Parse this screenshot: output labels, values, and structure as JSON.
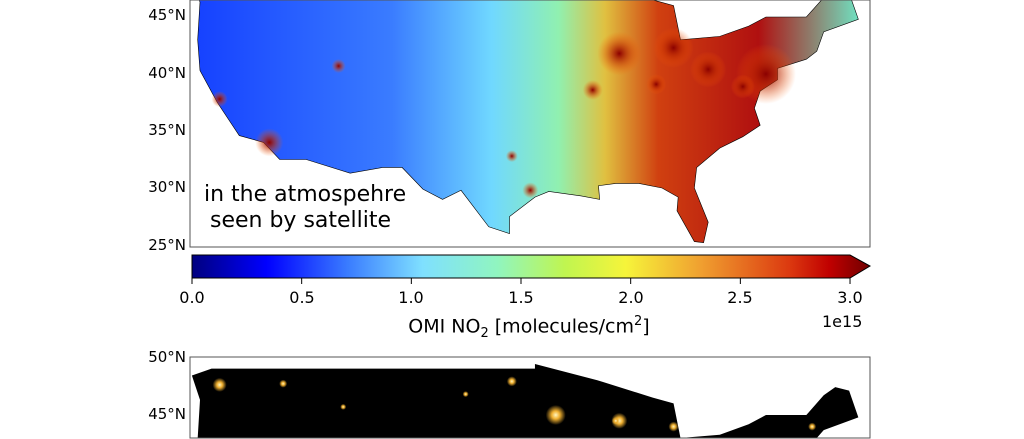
{
  "top_map": {
    "lat_labels": [
      "45°N",
      "40°N",
      "35°N",
      "30°N",
      "25°N"
    ],
    "annotation_line1": "in the atmospehre",
    "annotation_line2": "seen by satellite"
  },
  "colorbar": {
    "colormap": "jet",
    "range": [
      0.0,
      3.0
    ],
    "extend": "max",
    "tick_labels": [
      "0.0",
      "0.5",
      "1.0",
      "1.5",
      "2.0",
      "2.5",
      "3.0"
    ],
    "label_main": "OMI NO",
    "label_sub": "2",
    "label_rest": " [molecules/cm",
    "label_sup": "2",
    "label_end": "]",
    "offset_text": "1e15"
  },
  "bottom_map": {
    "lat_labels": [
      "50°N",
      "45°N"
    ]
  }
}
